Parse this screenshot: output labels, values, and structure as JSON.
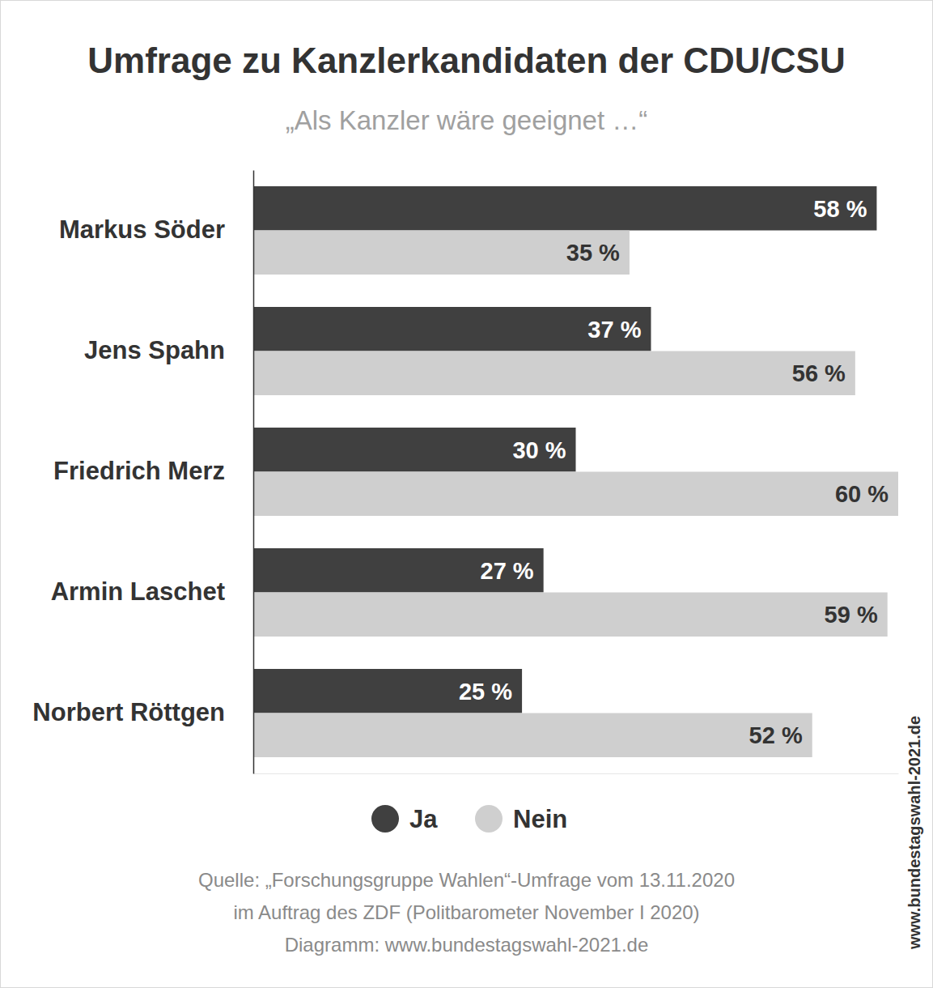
{
  "chart_data": {
    "type": "bar",
    "orientation": "horizontal",
    "title": "Umfrage zu Kanzlerkandidaten der CDU/CSU",
    "subtitle": "„Als Kanzler wäre geeignet …“",
    "categories": [
      "Markus Söder",
      "Jens Spahn",
      "Friedrich Merz",
      "Armin Laschet",
      "Norbert Röttgen"
    ],
    "series": [
      {
        "name": "Ja",
        "color": "#404040",
        "values": [
          58,
          37,
          30,
          27,
          25
        ]
      },
      {
        "name": "Nein",
        "color": "#cfcfcf",
        "values": [
          35,
          56,
          60,
          59,
          52
        ]
      }
    ],
    "xlim": [
      0,
      60
    ],
    "xticks": [],
    "tick_labels": "y",
    "grid": false,
    "data_labels": true,
    "value_labels": [
      [
        "58 %",
        "37 %",
        "30 %",
        "27 %",
        "25 %"
      ],
      [
        "35 %",
        "56 %",
        "60 %",
        "59 %",
        "52 %"
      ]
    ],
    "legend": "bottom",
    "source": [
      "Quelle: „Forschungsgruppe Wahlen“-Umfrage vom 13.11.2020",
      "im Auftrag des ZDF (Politbarometer November I 2020)",
      "Diagramm: www.bundestagswahl-2021.de"
    ],
    "watermark": "www.bundestagswahl-2021.de"
  }
}
